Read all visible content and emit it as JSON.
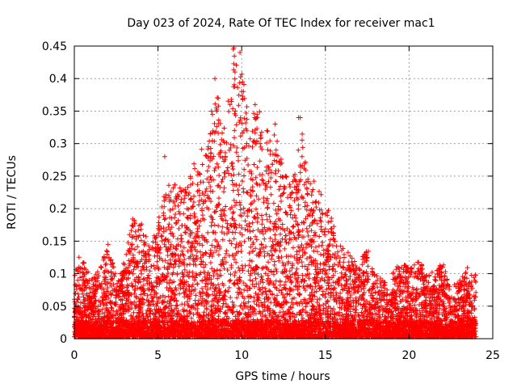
{
  "chart_data": {
    "type": "scatter",
    "title": "Day 023 of 2024, Rate Of TEC Index for receiver mac1",
    "xlabel": "GPS time / hours",
    "ylabel": "ROTI / TECUs",
    "xlim": [
      0,
      25
    ],
    "ylim": [
      0,
      0.45
    ],
    "xticks": [
      0,
      5,
      10,
      15,
      20,
      25
    ],
    "yticks": [
      0,
      0.05,
      0.1,
      0.15,
      0.2,
      0.25,
      0.3,
      0.35,
      0.4,
      0.45
    ],
    "xtick_labels": [
      "0",
      "5",
      "10",
      "15",
      "20",
      "25"
    ],
    "ytick_labels": [
      "0",
      "0.05",
      "0.1",
      "0.15",
      "0.2",
      "0.25",
      "0.3",
      "0.35",
      "0.4",
      "0.45"
    ],
    "grid": true,
    "marker": "+",
    "color": "#ff0000",
    "x_range_of_data": [
      0.0,
      24.0
    ],
    "envelope": [
      {
        "x": 0.0,
        "y": 0.1
      },
      {
        "x": 0.3,
        "y": 0.13
      },
      {
        "x": 0.6,
        "y": 0.12
      },
      {
        "x": 1.0,
        "y": 0.09
      },
      {
        "x": 1.5,
        "y": 0.11
      },
      {
        "x": 2.0,
        "y": 0.15
      },
      {
        "x": 2.5,
        "y": 0.1
      },
      {
        "x": 3.0,
        "y": 0.12
      },
      {
        "x": 3.5,
        "y": 0.19
      },
      {
        "x": 4.0,
        "y": 0.18
      },
      {
        "x": 4.5,
        "y": 0.14
      },
      {
        "x": 5.0,
        "y": 0.18
      },
      {
        "x": 5.5,
        "y": 0.24
      },
      {
        "x": 6.0,
        "y": 0.24
      },
      {
        "x": 6.5,
        "y": 0.23
      },
      {
        "x": 7.0,
        "y": 0.26
      },
      {
        "x": 7.5,
        "y": 0.29
      },
      {
        "x": 8.0,
        "y": 0.3
      },
      {
        "x": 8.5,
        "y": 0.39
      },
      {
        "x": 9.0,
        "y": 0.32
      },
      {
        "x": 9.5,
        "y": 0.45
      },
      {
        "x": 10.0,
        "y": 0.43
      },
      {
        "x": 10.5,
        "y": 0.34
      },
      {
        "x": 11.0,
        "y": 0.36
      },
      {
        "x": 11.5,
        "y": 0.32
      },
      {
        "x": 12.0,
        "y": 0.32
      },
      {
        "x": 12.5,
        "y": 0.26
      },
      {
        "x": 13.0,
        "y": 0.23
      },
      {
        "x": 13.5,
        "y": 0.34
      },
      {
        "x": 14.0,
        "y": 0.25
      },
      {
        "x": 14.5,
        "y": 0.24
      },
      {
        "x": 15.0,
        "y": 0.21
      },
      {
        "x": 15.5,
        "y": 0.18
      },
      {
        "x": 16.0,
        "y": 0.14
      },
      {
        "x": 16.5,
        "y": 0.13
      },
      {
        "x": 17.0,
        "y": 0.12
      },
      {
        "x": 17.5,
        "y": 0.14
      },
      {
        "x": 18.0,
        "y": 0.1
      },
      {
        "x": 18.5,
        "y": 0.09
      },
      {
        "x": 19.0,
        "y": 0.1
      },
      {
        "x": 19.5,
        "y": 0.12
      },
      {
        "x": 20.0,
        "y": 0.11
      },
      {
        "x": 20.5,
        "y": 0.12
      },
      {
        "x": 21.0,
        "y": 0.11
      },
      {
        "x": 21.5,
        "y": 0.1
      },
      {
        "x": 22.0,
        "y": 0.12
      },
      {
        "x": 22.5,
        "y": 0.08
      },
      {
        "x": 23.0,
        "y": 0.09
      },
      {
        "x": 23.5,
        "y": 0.11
      },
      {
        "x": 24.0,
        "y": 0.1
      }
    ],
    "peaks": [
      {
        "x": 5.4,
        "y": 0.28
      },
      {
        "x": 8.4,
        "y": 0.4
      },
      {
        "x": 8.6,
        "y": 0.37
      },
      {
        "x": 9.5,
        "y": 0.445
      },
      {
        "x": 9.6,
        "y": 0.41
      },
      {
        "x": 9.9,
        "y": 0.44
      },
      {
        "x": 10.3,
        "y": 0.3
      },
      {
        "x": 10.8,
        "y": 0.36
      },
      {
        "x": 11.1,
        "y": 0.3
      },
      {
        "x": 11.5,
        "y": 0.32
      },
      {
        "x": 12.0,
        "y": 0.33
      },
      {
        "x": 13.4,
        "y": 0.34
      },
      {
        "x": 13.5,
        "y": 0.34
      },
      {
        "x": 8.2,
        "y": 0.35
      },
      {
        "x": 8.5,
        "y": 0.35
      },
      {
        "x": 9.3,
        "y": 0.36
      },
      {
        "x": 10.0,
        "y": 0.38
      }
    ]
  }
}
